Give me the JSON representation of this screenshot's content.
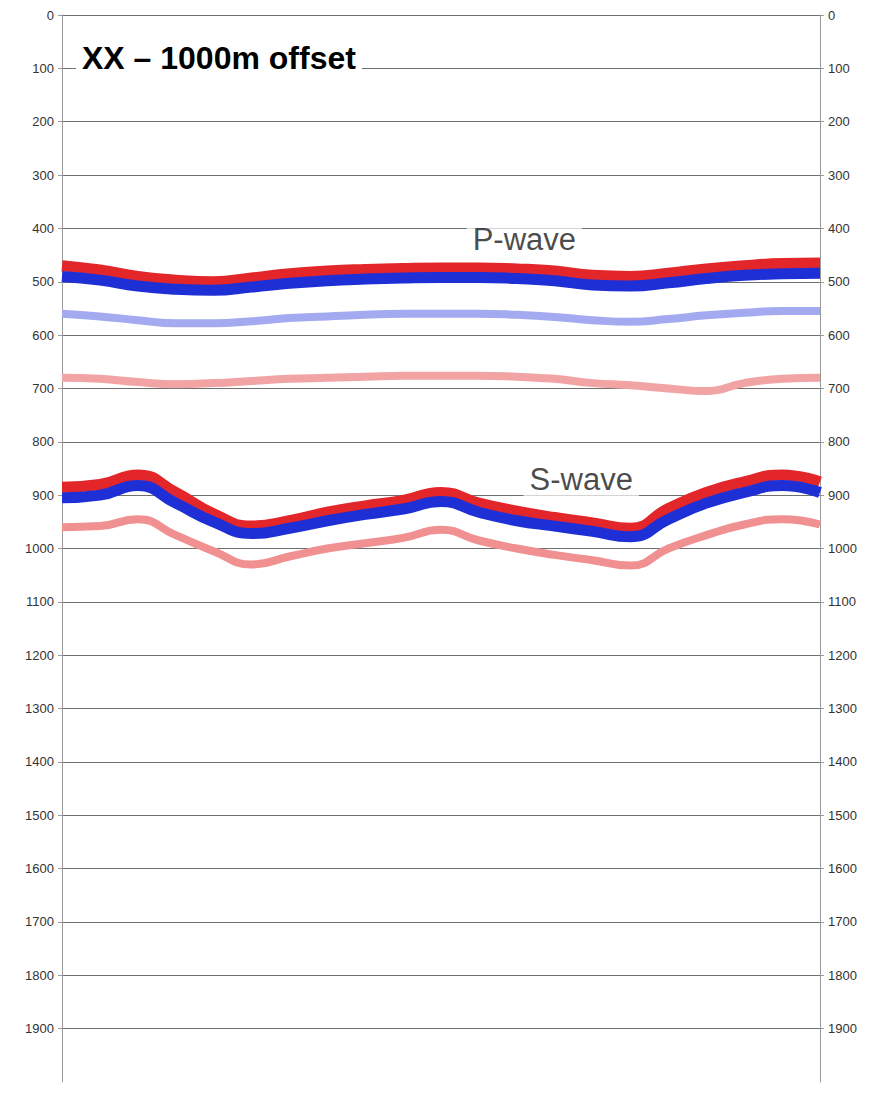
{
  "chart_data": {
    "type": "line",
    "title": "XX – 1000m offset",
    "x": [
      0,
      1,
      2,
      3,
      4,
      5,
      6,
      7,
      8,
      9,
      10,
      11,
      12,
      13,
      14,
      15,
      16,
      17,
      18,
      19,
      20
    ],
    "xlim": [
      0,
      20
    ],
    "ylim": [
      0,
      2000
    ],
    "yticks": [
      0,
      100,
      200,
      300,
      400,
      500,
      600,
      700,
      800,
      900,
      1000,
      1100,
      1200,
      1300,
      1400,
      1500,
      1600,
      1700,
      1800,
      1900
    ],
    "y2lim": [
      0,
      2000
    ],
    "y2ticks": [
      0,
      100,
      200,
      300,
      400,
      500,
      600,
      700,
      800,
      900,
      1000,
      1100,
      1200,
      1300,
      1400,
      1500,
      1600,
      1700,
      1800,
      1900
    ],
    "grid": true,
    "tick_labels": "y",
    "series": [
      {
        "color": "#f2a3a3",
        "values": [
          680,
          682,
          688,
          692,
          690,
          686,
          682,
          680,
          678,
          676,
          676,
          676,
          678,
          682,
          690,
          694,
          700,
          705,
          690,
          682,
          680
        ]
      },
      {
        "color": "#a3aaf0",
        "values": [
          560,
          565,
          572,
          578,
          578,
          574,
          568,
          565,
          562,
          560,
          560,
          560,
          562,
          566,
          572,
          575,
          570,
          563,
          558,
          555,
          555
        ]
      },
      {
        "color": "#e3262a",
        "values": [
          470,
          478,
          490,
          497,
          500,
          493,
          485,
          480,
          477,
          475,
          474,
          474,
          476,
          480,
          488,
          490,
          484,
          476,
          470,
          466,
          465
        ]
      },
      {
        "color": "#1f2fd6",
        "values": [
          490,
          497,
          508,
          514,
          516,
          510,
          503,
          498,
          495,
          493,
          492,
          492,
          494,
          498,
          506,
          508,
          502,
          494,
          488,
          485,
          484
        ]
      },
      {
        "color": "#f09090",
        "values": [
          960,
          958,
          945,
          975,
          1005,
          1030,
          1015,
          1000,
          990,
          980,
          965,
          985,
          1000,
          1012,
          1022,
          1032,
          1000,
          975,
          955,
          945,
          955
        ]
      },
      {
        "color": "#e3262a",
        "values": [
          885,
          880,
          862,
          895,
          935,
          958,
          948,
          932,
          920,
          910,
          895,
          915,
          930,
          942,
          952,
          962,
          925,
          895,
          875,
          862,
          875
        ]
      },
      {
        "color": "#1f2fd6",
        "values": [
          905,
          900,
          882,
          915,
          950,
          972,
          962,
          948,
          936,
          926,
          912,
          932,
          948,
          958,
          968,
          978,
          945,
          915,
          895,
          882,
          895
        ]
      }
    ],
    "annotations": [
      {
        "text": "P-wave",
        "x": 12.2,
        "y": 420
      },
      {
        "text": "S-wave",
        "x": 13.7,
        "y": 870
      }
    ]
  }
}
